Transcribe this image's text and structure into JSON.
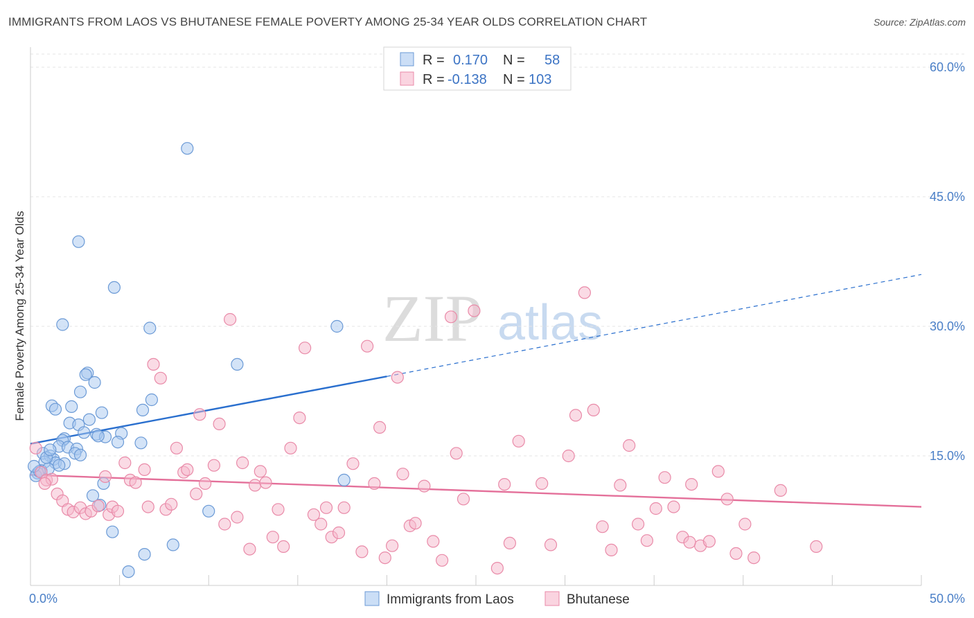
{
  "title": "IMMIGRANTS FROM LAOS VS BHUTANESE FEMALE POVERTY AMONG 25-34 YEAR OLDS CORRELATION CHART",
  "source": "Source: ZipAtlas.com",
  "watermark": {
    "zip": "ZIP",
    "atlas": "atlas"
  },
  "colors": {
    "blue_fill": "#a8c8f0",
    "blue_stroke": "#6b9ad6",
    "blue_line": "#2a6fce",
    "pink_fill": "#f6b8cc",
    "pink_stroke": "#e98aa8",
    "pink_line": "#e4709a",
    "grid": "#e6e6e6",
    "tick_label": "#4a7fc7"
  },
  "legend": {
    "r_label": "R =",
    "n_label": "N =",
    "rows": [
      {
        "r": "0.170",
        "n": "58"
      },
      {
        "r": "-0.138",
        "n": "103"
      }
    ]
  },
  "chart_data": {
    "type": "scatter",
    "xlabel": "",
    "ylabel": "Female Poverty Among 25-34 Year Olds",
    "xlim": [
      0,
      50
    ],
    "ylim": [
      0,
      60
    ],
    "x_tick_labels": [
      "0.0%",
      "50.0%"
    ],
    "y_ticks": [
      15,
      30,
      45,
      60
    ],
    "y_tick_labels": [
      "15.0%",
      "30.0%",
      "45.0%",
      "60.0%"
    ],
    "grid": true,
    "legend_position": "top-center",
    "series": [
      {
        "name": "Immigrants from Laos",
        "r": 0.17,
        "n": 58,
        "trend": {
          "x0": 0,
          "y0": 16.4,
          "x1": 20,
          "y1": 24.2,
          "dash_to_x": 50,
          "dash_to_y": 36.0
        },
        "points": [
          [
            8.8,
            50.6
          ],
          [
            2.7,
            39.8
          ],
          [
            4.7,
            34.5
          ],
          [
            1.8,
            30.2
          ],
          [
            6.7,
            29.8
          ],
          [
            17.2,
            30.0
          ],
          [
            11.6,
            25.6
          ],
          [
            3.2,
            24.6
          ],
          [
            3.1,
            24.4
          ],
          [
            3.6,
            23.5
          ],
          [
            2.8,
            22.4
          ],
          [
            6.8,
            21.5
          ],
          [
            1.2,
            20.8
          ],
          [
            1.4,
            20.4
          ],
          [
            2.3,
            20.7
          ],
          [
            4.0,
            20.0
          ],
          [
            6.3,
            20.3
          ],
          [
            2.2,
            18.8
          ],
          [
            3.3,
            19.2
          ],
          [
            2.7,
            18.6
          ],
          [
            3.0,
            17.7
          ],
          [
            3.7,
            17.5
          ],
          [
            4.2,
            17.2
          ],
          [
            5.1,
            17.6
          ],
          [
            1.9,
            17.0
          ],
          [
            1.8,
            16.8
          ],
          [
            1.6,
            16.1
          ],
          [
            2.1,
            16.0
          ],
          [
            2.6,
            15.8
          ],
          [
            4.9,
            16.6
          ],
          [
            6.2,
            16.5
          ],
          [
            0.7,
            15.3
          ],
          [
            1.1,
            15.0
          ],
          [
            1.3,
            14.6
          ],
          [
            0.8,
            14.3
          ],
          [
            1.4,
            14.2
          ],
          [
            1.9,
            14.1
          ],
          [
            2.5,
            15.3
          ],
          [
            0.6,
            13.3
          ],
          [
            1.0,
            13.5
          ],
          [
            0.4,
            13.0
          ],
          [
            0.3,
            12.7
          ],
          [
            0.5,
            13.2
          ],
          [
            0.9,
            14.8
          ],
          [
            1.1,
            15.7
          ],
          [
            4.1,
            11.8
          ],
          [
            17.6,
            12.2
          ],
          [
            3.5,
            10.4
          ],
          [
            3.9,
            9.3
          ],
          [
            10.0,
            8.6
          ],
          [
            4.6,
            6.2
          ],
          [
            8.0,
            4.7
          ],
          [
            6.4,
            3.6
          ],
          [
            5.5,
            1.6
          ],
          [
            0.2,
            13.8
          ],
          [
            1.6,
            13.9
          ],
          [
            2.8,
            15.1
          ],
          [
            3.8,
            17.3
          ]
        ]
      },
      {
        "name": "Bhutanese",
        "r": -0.138,
        "n": 103,
        "trend": {
          "x0": 0,
          "y0": 12.8,
          "x1": 50,
          "y1": 9.1
        },
        "points": [
          [
            0.3,
            15.9
          ],
          [
            0.6,
            13.1
          ],
          [
            0.9,
            12.2
          ],
          [
            1.2,
            12.3
          ],
          [
            0.8,
            11.8
          ],
          [
            1.5,
            10.6
          ],
          [
            1.8,
            9.8
          ],
          [
            2.1,
            8.8
          ],
          [
            2.4,
            8.5
          ],
          [
            2.8,
            9.0
          ],
          [
            3.1,
            8.3
          ],
          [
            3.4,
            8.6
          ],
          [
            3.8,
            9.2
          ],
          [
            4.2,
            12.6
          ],
          [
            4.4,
            8.2
          ],
          [
            4.6,
            9.1
          ],
          [
            4.9,
            8.6
          ],
          [
            5.3,
            14.2
          ],
          [
            5.6,
            12.2
          ],
          [
            5.9,
            11.9
          ],
          [
            6.4,
            13.4
          ],
          [
            6.6,
            9.1
          ],
          [
            6.9,
            25.6
          ],
          [
            7.3,
            24.0
          ],
          [
            7.6,
            8.8
          ],
          [
            7.9,
            9.4
          ],
          [
            8.2,
            15.9
          ],
          [
            8.6,
            13.1
          ],
          [
            8.8,
            13.4
          ],
          [
            9.3,
            10.6
          ],
          [
            9.5,
            19.8
          ],
          [
            9.8,
            11.8
          ],
          [
            10.3,
            13.9
          ],
          [
            10.6,
            18.7
          ],
          [
            10.9,
            7.1
          ],
          [
            11.2,
            30.8
          ],
          [
            11.6,
            7.9
          ],
          [
            11.9,
            14.2
          ],
          [
            12.3,
            4.2
          ],
          [
            12.6,
            11.6
          ],
          [
            12.9,
            13.2
          ],
          [
            13.2,
            11.9
          ],
          [
            13.6,
            5.6
          ],
          [
            13.9,
            8.8
          ],
          [
            14.2,
            4.5
          ],
          [
            14.6,
            15.9
          ],
          [
            15.1,
            19.4
          ],
          [
            15.4,
            27.5
          ],
          [
            15.9,
            8.2
          ],
          [
            16.3,
            7.1
          ],
          [
            16.6,
            9.0
          ],
          [
            16.9,
            5.6
          ],
          [
            17.3,
            6.1
          ],
          [
            17.6,
            9.0
          ],
          [
            18.1,
            14.1
          ],
          [
            18.6,
            3.9
          ],
          [
            18.9,
            27.7
          ],
          [
            19.3,
            11.8
          ],
          [
            19.6,
            18.3
          ],
          [
            19.9,
            3.2
          ],
          [
            20.3,
            4.6
          ],
          [
            20.6,
            24.1
          ],
          [
            20.9,
            12.9
          ],
          [
            21.3,
            6.9
          ],
          [
            21.6,
            7.2
          ],
          [
            22.1,
            11.5
          ],
          [
            22.6,
            5.1
          ],
          [
            23.1,
            2.9
          ],
          [
            23.6,
            31.1
          ],
          [
            23.9,
            15.3
          ],
          [
            24.3,
            10.0
          ],
          [
            24.9,
            31.8
          ],
          [
            26.2,
            2.0
          ],
          [
            26.6,
            11.7
          ],
          [
            26.9,
            4.9
          ],
          [
            27.4,
            16.7
          ],
          [
            28.7,
            11.8
          ],
          [
            29.2,
            4.7
          ],
          [
            30.2,
            15.0
          ],
          [
            30.6,
            19.7
          ],
          [
            31.1,
            33.9
          ],
          [
            31.6,
            20.3
          ],
          [
            32.1,
            6.8
          ],
          [
            32.6,
            4.1
          ],
          [
            33.1,
            11.6
          ],
          [
            33.6,
            16.2
          ],
          [
            34.1,
            7.1
          ],
          [
            34.6,
            5.2
          ],
          [
            35.1,
            8.9
          ],
          [
            35.6,
            12.5
          ],
          [
            36.1,
            9.1
          ],
          [
            36.6,
            5.6
          ],
          [
            37.1,
            11.7
          ],
          [
            37.6,
            4.6
          ],
          [
            38.1,
            5.1
          ],
          [
            38.6,
            13.2
          ],
          [
            39.1,
            10.0
          ],
          [
            39.6,
            3.7
          ],
          [
            40.1,
            7.1
          ],
          [
            40.6,
            3.2
          ],
          [
            42.1,
            11.0
          ],
          [
            44.1,
            4.5
          ],
          [
            37.0,
            5.0
          ]
        ]
      }
    ],
    "bottom_legend": [
      "Immigrants from Laos",
      "Bhutanese"
    ]
  }
}
